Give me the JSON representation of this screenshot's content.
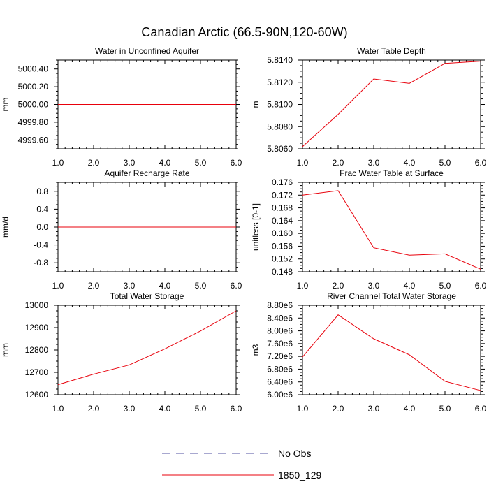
{
  "title": "Canadian Arctic (66.5-90N,120-60W)",
  "legend": {
    "items": [
      {
        "label": "No Obs",
        "color": "#5050a0",
        "style": "dashed"
      },
      {
        "label": "1850_129",
        "color": "#e8000b",
        "style": "solid"
      }
    ]
  },
  "chart_data": [
    {
      "type": "line",
      "title": "Water in Unconfined Aquifer",
      "ylabel": "mm",
      "xlim": [
        1.0,
        6.0
      ],
      "xticks": [
        "1.0",
        "2.0",
        "3.0",
        "4.0",
        "5.0",
        "6.0"
      ],
      "ylim": [
        4999.5,
        5000.5
      ],
      "yticks": [
        "5000.40",
        "5000.20",
        "5000.00",
        "4999.80",
        "4999.60"
      ],
      "ytick_values": [
        5000.4,
        5000.2,
        5000.0,
        4999.8,
        4999.6
      ],
      "series": [
        {
          "x": [
            1,
            2,
            3,
            4,
            5,
            6
          ],
          "values": [
            5000,
            5000,
            5000,
            5000,
            5000,
            5000
          ],
          "color": "#e8000b"
        }
      ]
    },
    {
      "type": "line",
      "title": "Water Table Depth",
      "ylabel": "m",
      "xlim": [
        1.0,
        6.0
      ],
      "xticks": [
        "1.0",
        "2.0",
        "3.0",
        "4.0",
        "5.0",
        "6.0"
      ],
      "ylim": [
        5.806,
        5.814
      ],
      "yticks": [
        "5.8140",
        "5.8120",
        "5.8100",
        "5.8080",
        "5.8060"
      ],
      "ytick_values": [
        5.814,
        5.812,
        5.81,
        5.808,
        5.806
      ],
      "series": [
        {
          "x": [
            1,
            2,
            3,
            4,
            5,
            6
          ],
          "values": [
            5.8062,
            5.8091,
            5.8123,
            5.8119,
            5.8137,
            5.8139
          ],
          "color": "#e8000b"
        }
      ]
    },
    {
      "type": "line",
      "title": "Aquifer Recharge Rate",
      "ylabel": "mm/d",
      "xlim": [
        1.0,
        6.0
      ],
      "xticks": [
        "1.0",
        "2.0",
        "3.0",
        "4.0",
        "5.0",
        "6.0"
      ],
      "ylim": [
        -1.0,
        1.0
      ],
      "yticks": [
        "0.8",
        "0.4",
        "0.0",
        "-0.4",
        "-0.8"
      ],
      "ytick_values": [
        0.8,
        0.4,
        0.0,
        -0.4,
        -0.8
      ],
      "series": [
        {
          "x": [
            1,
            2,
            3,
            4,
            5,
            6
          ],
          "values": [
            0,
            0,
            0,
            0,
            0,
            0
          ],
          "color": "#e8000b"
        }
      ]
    },
    {
      "type": "line",
      "title": "Frac Water Table at Surface",
      "ylabel": "unitless [0-1]",
      "xlim": [
        1.0,
        6.0
      ],
      "xticks": [
        "1.0",
        "2.0",
        "3.0",
        "4.0",
        "5.0",
        "6.0"
      ],
      "ylim": [
        0.148,
        0.176
      ],
      "yticks": [
        "0.176",
        "0.172",
        "0.168",
        "0.164",
        "0.160",
        "0.156",
        "0.152",
        "0.148"
      ],
      "ytick_values": [
        0.176,
        0.172,
        0.168,
        0.164,
        0.16,
        0.156,
        0.152,
        0.148
      ],
      "series": [
        {
          "x": [
            1,
            2,
            3,
            4,
            5,
            6
          ],
          "values": [
            0.172,
            0.1734,
            0.1555,
            0.1532,
            0.1536,
            0.1488
          ],
          "color": "#e8000b"
        }
      ]
    },
    {
      "type": "line",
      "title": "Total Water Storage",
      "ylabel": "mm",
      "xlim": [
        1.0,
        6.0
      ],
      "xticks": [
        "1.0",
        "2.0",
        "3.0",
        "4.0",
        "5.0",
        "6.0"
      ],
      "ylim": [
        12600,
        13000
      ],
      "yticks": [
        "13000",
        "12900",
        "12800",
        "12700",
        "12600"
      ],
      "ytick_values": [
        13000,
        12900,
        12800,
        12700,
        12600
      ],
      "series": [
        {
          "x": [
            1,
            2,
            3,
            4,
            5,
            6
          ],
          "values": [
            12645,
            12692,
            12733,
            12805,
            12885,
            12975
          ],
          "color": "#e8000b"
        }
      ]
    },
    {
      "type": "line",
      "title": "River Channel Total Water Storage",
      "ylabel": "m3",
      "xlim": [
        1.0,
        6.0
      ],
      "xticks": [
        "1.0",
        "2.0",
        "3.0",
        "4.0",
        "5.0",
        "6.0"
      ],
      "ylim": [
        6000000,
        8800000
      ],
      "yticks": [
        "8.80e6",
        "8.40e6",
        "8.00e6",
        "7.60e6",
        "7.20e6",
        "6.80e6",
        "6.40e6",
        "6.00e6"
      ],
      "ytick_values": [
        8800000,
        8400000,
        8000000,
        7600000,
        7200000,
        6800000,
        6400000,
        6000000
      ],
      "series": [
        {
          "x": [
            1,
            2,
            3,
            4,
            5,
            6
          ],
          "values": [
            7180000,
            8500000,
            7750000,
            7250000,
            6420000,
            6130000
          ],
          "color": "#e8000b"
        }
      ]
    }
  ]
}
